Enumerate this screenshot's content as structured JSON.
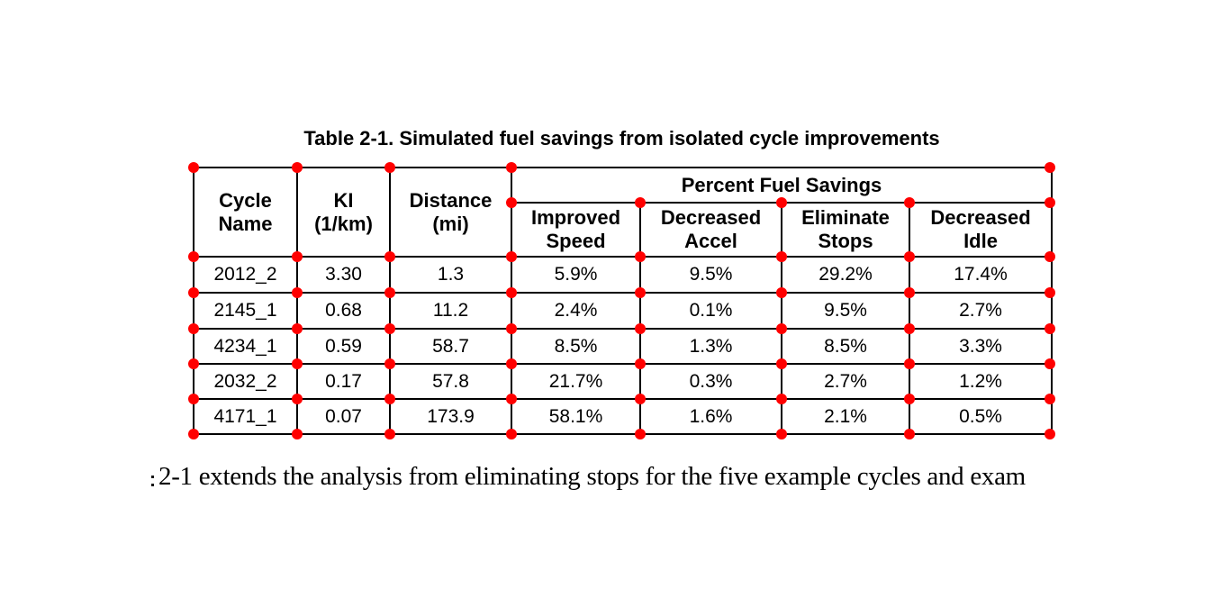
{
  "title": "Table 2-1. Simulated fuel savings from isolated cycle improvements",
  "table": {
    "header": {
      "cycle_name": "Cycle\nName",
      "ki": "KI\n(1/km)",
      "distance": "Distance\n(mi)",
      "group": "Percent Fuel Savings",
      "sub": [
        "Improved\nSpeed",
        "Decreased\nAccel",
        "Eliminate\nStops",
        "Decreased\nIdle"
      ]
    },
    "rows": [
      [
        "2012_2",
        "3.30",
        "1.3",
        "5.9%",
        "9.5%",
        "29.2%",
        "17.4%"
      ],
      [
        "2145_1",
        "0.68",
        "11.2",
        "2.4%",
        "0.1%",
        "9.5%",
        "2.7%"
      ],
      [
        "4234_1",
        "0.59",
        "58.7",
        "8.5%",
        "1.3%",
        "8.5%",
        "3.3%"
      ],
      [
        "2032_2",
        "0.17",
        "57.8",
        "21.7%",
        "0.3%",
        "2.7%",
        "1.2%"
      ],
      [
        "4171_1",
        "0.07",
        "173.9",
        "58.1%",
        "1.6%",
        "2.1%",
        "0.5%"
      ]
    ]
  },
  "body_text": "2-1 extends the analysis from eliminating stops for the five example cycles and exam",
  "annotation": {
    "marker_color": "#ff0000",
    "grid_line_color": "#000000"
  }
}
